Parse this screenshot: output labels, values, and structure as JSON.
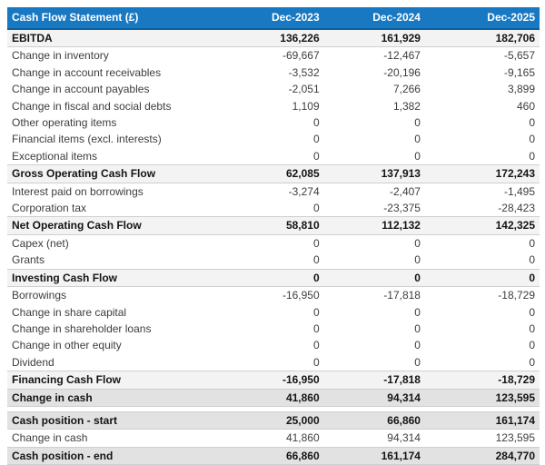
{
  "theme": {
    "header_bg": "#1878c2",
    "header_border": "#0e5f9b",
    "header_text": "#ffffff",
    "subtotal_row_bg": "#f3f3f3",
    "total_row_bg": "#e2e2e2",
    "row_text": "#3d3d3d",
    "bold_text": "#141414",
    "row_border": "#cfcfcf",
    "page_bg": "#ffffff"
  },
  "chart_data": {
    "type": "table",
    "title": "Cash Flow Statement (£)",
    "columns": [
      "Dec-2023",
      "Dec-2024",
      "Dec-2025"
    ],
    "rows_main": [
      {
        "label": "EBITDA",
        "values": [
          136226,
          161929,
          182706
        ],
        "emphasis": "subtotal"
      },
      {
        "label": "Change in inventory",
        "values": [
          -69667,
          -12467,
          -5657
        ],
        "emphasis": "none"
      },
      {
        "label": "Change in account receivables",
        "values": [
          -3532,
          -20196,
          -9165
        ],
        "emphasis": "none"
      },
      {
        "label": "Change in account payables",
        "values": [
          -2051,
          7266,
          3899
        ],
        "emphasis": "none"
      },
      {
        "label": "Change in fiscal and social debts",
        "values": [
          1109,
          1382,
          460
        ],
        "emphasis": "none"
      },
      {
        "label": "Other operating items",
        "values": [
          0,
          0,
          0
        ],
        "emphasis": "none"
      },
      {
        "label": "Financial items (excl. interests)",
        "values": [
          0,
          0,
          0
        ],
        "emphasis": "none"
      },
      {
        "label": "Exceptional items",
        "values": [
          0,
          0,
          0
        ],
        "emphasis": "none"
      },
      {
        "label": "Gross Operating Cash Flow",
        "values": [
          62085,
          137913,
          172243
        ],
        "emphasis": "subtotal"
      },
      {
        "label": "Interest paid on borrowings",
        "values": [
          -3274,
          -2407,
          -1495
        ],
        "emphasis": "none"
      },
      {
        "label": "Corporation tax",
        "values": [
          0,
          -23375,
          -28423
        ],
        "emphasis": "none"
      },
      {
        "label": "Net Operating Cash Flow",
        "values": [
          58810,
          112132,
          142325
        ],
        "emphasis": "subtotal"
      },
      {
        "label": "Capex (net)",
        "values": [
          0,
          0,
          0
        ],
        "emphasis": "none"
      },
      {
        "label": "Grants",
        "values": [
          0,
          0,
          0
        ],
        "emphasis": "none"
      },
      {
        "label": "Investing Cash Flow",
        "values": [
          0,
          0,
          0
        ],
        "emphasis": "subtotal"
      },
      {
        "label": "Borrowings",
        "values": [
          -16950,
          -17818,
          -18729
        ],
        "emphasis": "none"
      },
      {
        "label": "Change in share capital",
        "values": [
          0,
          0,
          0
        ],
        "emphasis": "none"
      },
      {
        "label": "Change in shareholder loans",
        "values": [
          0,
          0,
          0
        ],
        "emphasis": "none"
      },
      {
        "label": "Change in other equity",
        "values": [
          0,
          0,
          0
        ],
        "emphasis": "none"
      },
      {
        "label": "Dividend",
        "values": [
          0,
          0,
          0
        ],
        "emphasis": "none"
      },
      {
        "label": "Financing Cash Flow",
        "values": [
          -16950,
          -17818,
          -18729
        ],
        "emphasis": "subtotal"
      },
      {
        "label": "Change in cash",
        "values": [
          41860,
          94314,
          123595
        ],
        "emphasis": "total"
      }
    ],
    "rows_cash_position": [
      {
        "label": "Cash position - start",
        "values": [
          25000,
          66860,
          161174
        ],
        "emphasis": "total"
      },
      {
        "label": "Change in cash",
        "values": [
          41860,
          94314,
          123595
        ],
        "emphasis": "none"
      },
      {
        "label": "Cash position - end",
        "values": [
          66860,
          161174,
          284770
        ],
        "emphasis": "total"
      }
    ]
  }
}
